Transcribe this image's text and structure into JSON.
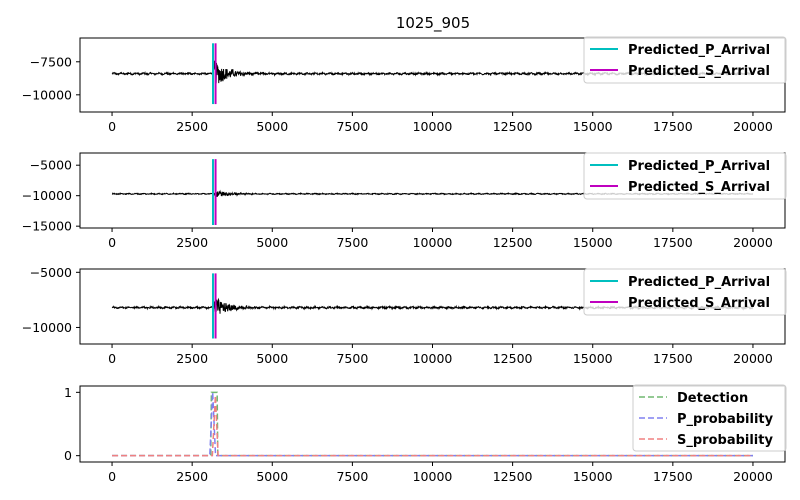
{
  "title": "1025_905",
  "colors": {
    "waveform": "#000000",
    "p_arrival": "#00bfbf",
    "s_arrival": "#bf00bf",
    "detection": "#70b870",
    "p_probability": "#8080f0",
    "s_probability": "#f08080"
  },
  "chart_data": [
    {
      "type": "line",
      "title": "1025_905",
      "xlim": [
        -1000,
        21000
      ],
      "ylim": [
        -11300,
        -5700
      ],
      "xticks": [
        0,
        2500,
        5000,
        7500,
        10000,
        12500,
        15000,
        17500,
        20000
      ],
      "yticks": [
        -10000,
        -7500
      ],
      "waveform": {
        "baseline": -8400,
        "noise": 90,
        "onset": 3150,
        "peak_amp": 1100,
        "decay": 450,
        "length": 20000
      },
      "p_arrival": {
        "x": 3150,
        "y_range": [
          -10700,
          -6100
        ]
      },
      "s_arrival": {
        "x": 3230,
        "y_range": [
          -10700,
          -6100
        ]
      },
      "legend": {
        "position": "top-right",
        "entries": [
          {
            "label": "Predicted_P_Arrival",
            "color_key": "p_arrival"
          },
          {
            "label": "Predicted_S_Arrival",
            "color_key": "s_arrival"
          }
        ]
      }
    },
    {
      "type": "line",
      "xlim": [
        -1000,
        21000
      ],
      "ylim": [
        -15300,
        -3000
      ],
      "xticks": [
        0,
        2500,
        5000,
        7500,
        10000,
        12500,
        15000,
        17500,
        20000
      ],
      "yticks": [
        -15000,
        -10000,
        -5000
      ],
      "waveform": {
        "baseline": -9700,
        "noise": 110,
        "onset": 3150,
        "peak_amp": 700,
        "decay": 450,
        "length": 20000
      },
      "p_arrival": {
        "x": 3150,
        "y_range": [
          -14800,
          -4000
        ]
      },
      "s_arrival": {
        "x": 3230,
        "y_range": [
          -14800,
          -4000
        ]
      },
      "legend": {
        "position": "top-right",
        "entries": [
          {
            "label": "Predicted_P_Arrival",
            "color_key": "p_arrival"
          },
          {
            "label": "Predicted_S_Arrival",
            "color_key": "s_arrival"
          }
        ]
      }
    },
    {
      "type": "line",
      "xlim": [
        -1000,
        21000
      ],
      "ylim": [
        -11500,
        -4700
      ],
      "xticks": [
        0,
        2500,
        5000,
        7500,
        10000,
        12500,
        15000,
        17500,
        20000
      ],
      "yticks": [
        -10000,
        -5000
      ],
      "waveform": {
        "baseline": -8200,
        "noise": 110,
        "onset": 3150,
        "peak_amp": 1000,
        "decay": 450,
        "length": 20000
      },
      "p_arrival": {
        "x": 3150,
        "y_range": [
          -11000,
          -5100
        ]
      },
      "s_arrival": {
        "x": 3230,
        "y_range": [
          -11000,
          -5100
        ]
      },
      "legend": {
        "position": "top-right",
        "entries": [
          {
            "label": "Predicted_P_Arrival",
            "color_key": "p_arrival"
          },
          {
            "label": "Predicted_S_Arrival",
            "color_key": "s_arrival"
          }
        ]
      }
    },
    {
      "type": "line",
      "xlim": [
        -1000,
        21000
      ],
      "ylim": [
        -0.1,
        1.1
      ],
      "xticks": [
        0,
        2500,
        5000,
        7500,
        10000,
        12500,
        15000,
        17500,
        20000
      ],
      "yticks": [
        0,
        1
      ],
      "series": [
        {
          "name": "Detection",
          "color_key": "detection",
          "x": [
            0,
            3080,
            3100,
            3280,
            3300,
            20000
          ],
          "y": [
            0,
            0,
            1,
            1,
            0,
            0
          ]
        },
        {
          "name": "P_probability",
          "color_key": "p_probability",
          "x": [
            0,
            3050,
            3140,
            3230,
            20000
          ],
          "y": [
            0,
            0,
            1,
            0,
            0
          ]
        },
        {
          "name": "S_probability",
          "color_key": "s_probability",
          "x": [
            0,
            3130,
            3225,
            3310,
            20000
          ],
          "y": [
            0,
            0,
            0.95,
            0,
            0
          ]
        }
      ],
      "legend": {
        "position": "top-right",
        "entries": [
          {
            "label": "Detection",
            "color_key": "detection"
          },
          {
            "label": "P_probability",
            "color_key": "p_probability"
          },
          {
            "label": "S_probability",
            "color_key": "s_probability"
          }
        ]
      }
    }
  ]
}
